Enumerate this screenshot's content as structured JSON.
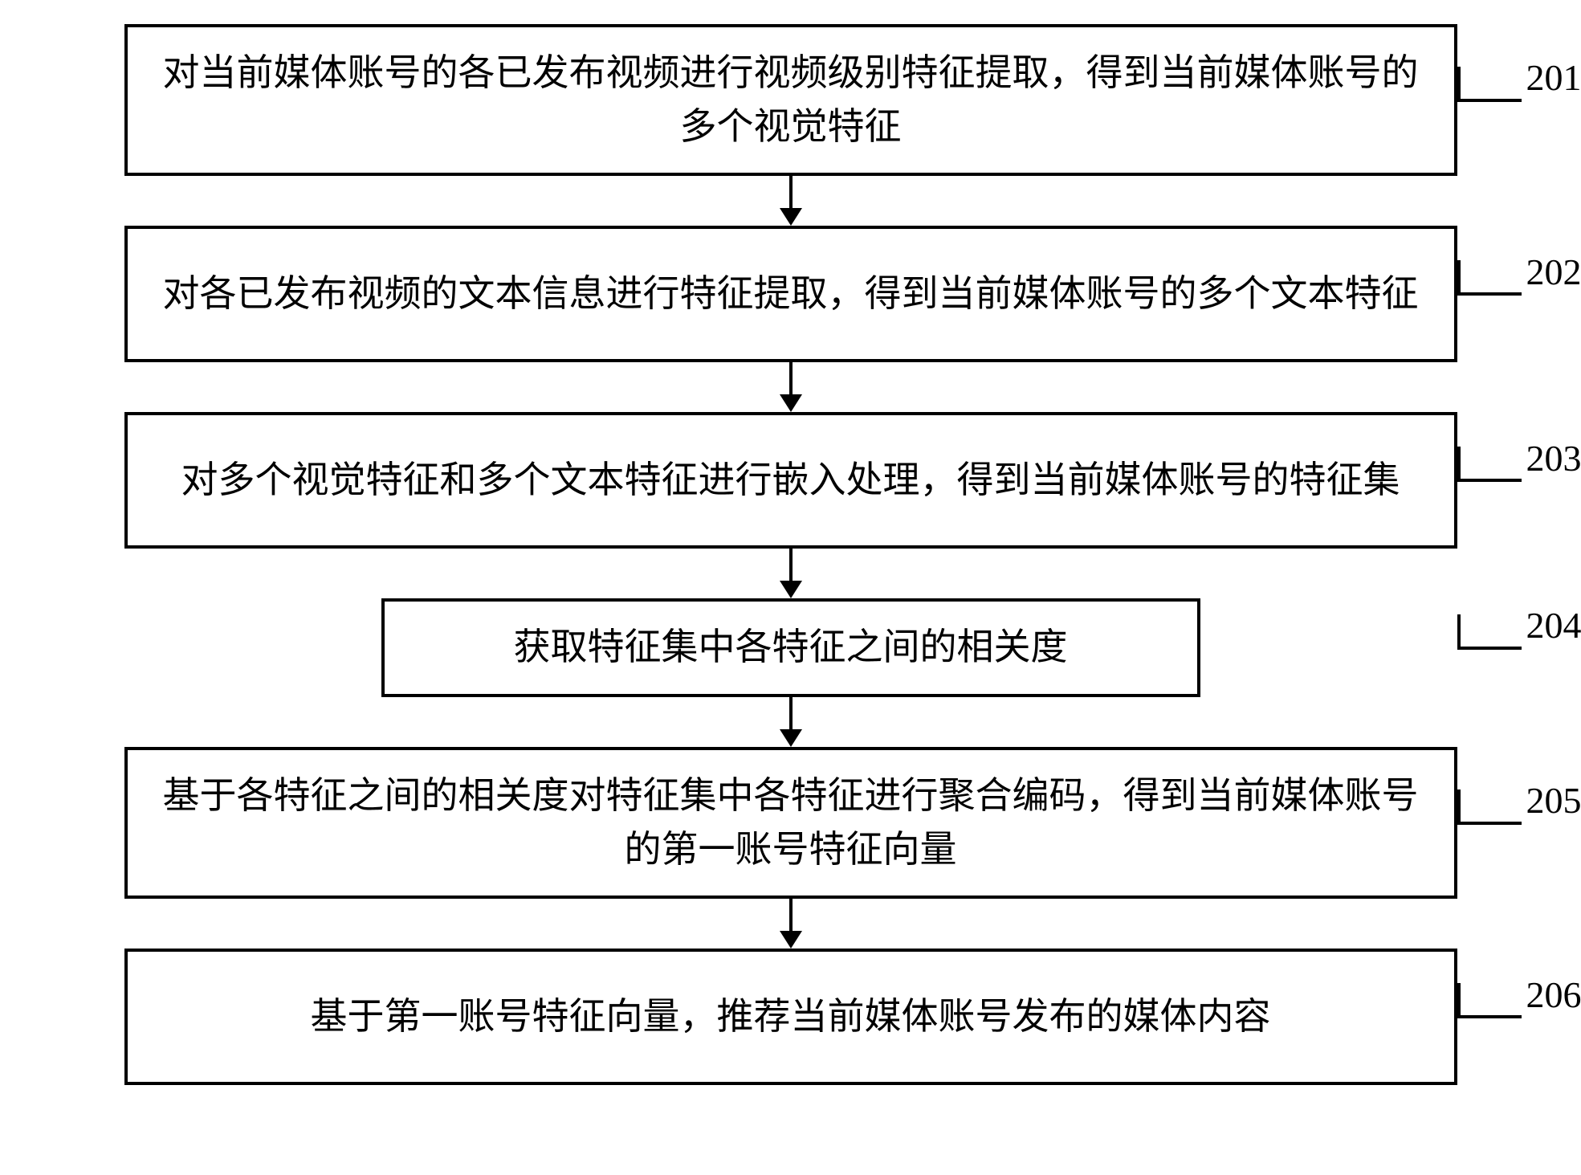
{
  "flowchart": {
    "type": "flowchart",
    "direction": "vertical",
    "border_color": "#000000",
    "border_width": 4,
    "background_color": "#ffffff",
    "text_color": "#000000",
    "font_size": 46,
    "font_family": "SimSun",
    "arrow_color": "#000000",
    "arrow_line_width": 4,
    "arrow_head_width": 28,
    "arrow_head_height": 22,
    "box_wide_width": 1660,
    "box_narrow_width": 1020,
    "steps": [
      {
        "id": "201",
        "width": "wide",
        "text": "对当前媒体账号的各已发布视频进行视频级别特征提取，得到当前媒体账号的多个视觉特征"
      },
      {
        "id": "202",
        "width": "wide",
        "text": "对各已发布视频的文本信息进行特征提取，得到当前媒体账号的多个文本特征"
      },
      {
        "id": "203",
        "width": "wide",
        "text": "对多个视觉特征和多个文本特征进行嵌入处理，得到当前媒体账号的特征集"
      },
      {
        "id": "204",
        "width": "narrow",
        "text": "获取特征集中各特征之间的相关度"
      },
      {
        "id": "205",
        "width": "wide",
        "text": "基于各特征之间的相关度对特征集中各特征进行聚合编码，得到当前媒体账号的第一账号特征向量"
      },
      {
        "id": "206",
        "width": "wide",
        "text": "基于第一账号特征向量，推荐当前媒体账号发布的媒体内容"
      }
    ],
    "label_tick": {
      "line_length": 80,
      "hook_height": 40,
      "line_width": 4,
      "color": "#000000"
    }
  }
}
